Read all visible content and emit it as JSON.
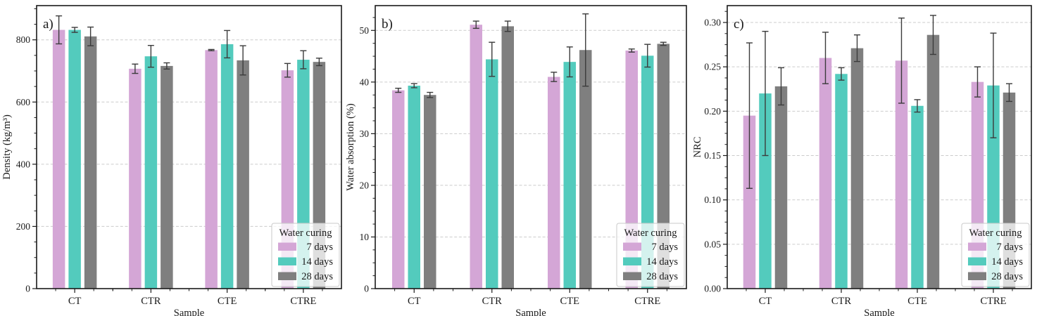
{
  "styles": {
    "series_colors": [
      "#D4A6D6",
      "#53CBBD",
      "#7F7F7F"
    ],
    "error_bar_color": "#3b3b3b",
    "grid_color": "#cccccc",
    "axis_color": "#1a1a1a",
    "legend_bg": "rgba(255,255,255,0.75)",
    "legend_border": "#c9c9c9",
    "background": "#ffffff"
  },
  "chart_data": [
    {
      "type": "bar",
      "panel_label": "a)",
      "xlabel": "Sample",
      "ylabel": "Density (kg/m³)",
      "categories": [
        "CT",
        "CTR",
        "CTE",
        "CTRE"
      ],
      "ylim": [
        0,
        910
      ],
      "yticks": [
        0,
        200,
        400,
        600,
        800
      ],
      "ytick_labels": [
        "0",
        "200",
        "400",
        "600",
        "800"
      ],
      "minor_tick_step": 50,
      "grid": "horizontal-dashed",
      "legend_title": "Water curing",
      "legend_position": "lower right",
      "series": [
        {
          "name": "7 days",
          "values": [
            832,
            707,
            767,
            702
          ],
          "errors": [
            45,
            15,
            2,
            22
          ]
        },
        {
          "name": "14 days",
          "values": [
            832,
            747,
            786,
            736
          ],
          "errors": [
            8,
            35,
            44,
            29
          ]
        },
        {
          "name": "28 days",
          "values": [
            811,
            716,
            734,
            729
          ],
          "errors": [
            30,
            10,
            47,
            12
          ]
        }
      ]
    },
    {
      "type": "bar",
      "panel_label": "b)",
      "xlabel": "Sample",
      "ylabel": "Water absorption (%)",
      "categories": [
        "CT",
        "CTR",
        "CTE",
        "CTRE"
      ],
      "ylim": [
        0,
        54.8
      ],
      "yticks": [
        0,
        10,
        20,
        30,
        40,
        50
      ],
      "ytick_labels": [
        "0",
        "10",
        "20",
        "30",
        "40",
        "50"
      ],
      "minor_tick_step": 2.5,
      "grid": "horizontal-dashed",
      "legend_title": "Water curing",
      "legend_position": "lower right",
      "series": [
        {
          "name": "7 days",
          "values": [
            38.4,
            51.1,
            41.0,
            46.1
          ],
          "errors": [
            0.4,
            0.7,
            0.9,
            0.3
          ]
        },
        {
          "name": "14 days",
          "values": [
            39.3,
            44.4,
            43.9,
            45.1
          ],
          "errors": [
            0.4,
            3.3,
            2.9,
            2.2
          ]
        },
        {
          "name": "28 days",
          "values": [
            37.5,
            50.8,
            46.2,
            47.4
          ],
          "errors": [
            0.5,
            1.0,
            7.0,
            0.3
          ]
        }
      ]
    },
    {
      "type": "bar",
      "panel_label": "c)",
      "xlabel": "Sample",
      "ylabel": "NRC",
      "categories": [
        "CT",
        "CTR",
        "CTE",
        "CTRE"
      ],
      "ylim": [
        0,
        0.319
      ],
      "yticks": [
        0,
        0.05,
        0.1,
        0.15,
        0.2,
        0.25,
        0.3
      ],
      "ytick_labels": [
        "0.00",
        "0.05",
        "0.10",
        "0.15",
        "0.20",
        "0.25",
        "0.30"
      ],
      "minor_tick_step": 0.0125,
      "grid": "horizontal-dashed",
      "legend_title": "Water curing",
      "legend_position": "lower right",
      "series": [
        {
          "name": "7 days",
          "values": [
            0.195,
            0.26,
            0.257,
            0.233
          ],
          "errors": [
            0.082,
            0.029,
            0.048,
            0.017
          ]
        },
        {
          "name": "14 days",
          "values": [
            0.22,
            0.242,
            0.206,
            0.229
          ],
          "errors": [
            0.07,
            0.007,
            0.007,
            0.059
          ]
        },
        {
          "name": "28 days",
          "values": [
            0.228,
            0.271,
            0.286,
            0.221
          ],
          "errors": [
            0.021,
            0.015,
            0.022,
            0.01
          ]
        }
      ]
    }
  ]
}
